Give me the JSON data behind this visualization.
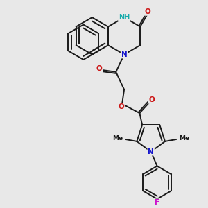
{
  "background_color": "#e8e8e8",
  "line_color": "#1a1a1a",
  "n_color": "#1414cc",
  "o_color": "#cc1414",
  "f_color": "#cc14cc",
  "nh_color": "#14aaaa",
  "bond_lw": 1.4,
  "font_size_atom": 7.5,
  "font_size_me": 6.5,
  "xlim": [
    0,
    10
  ],
  "ylim": [
    0,
    10
  ]
}
